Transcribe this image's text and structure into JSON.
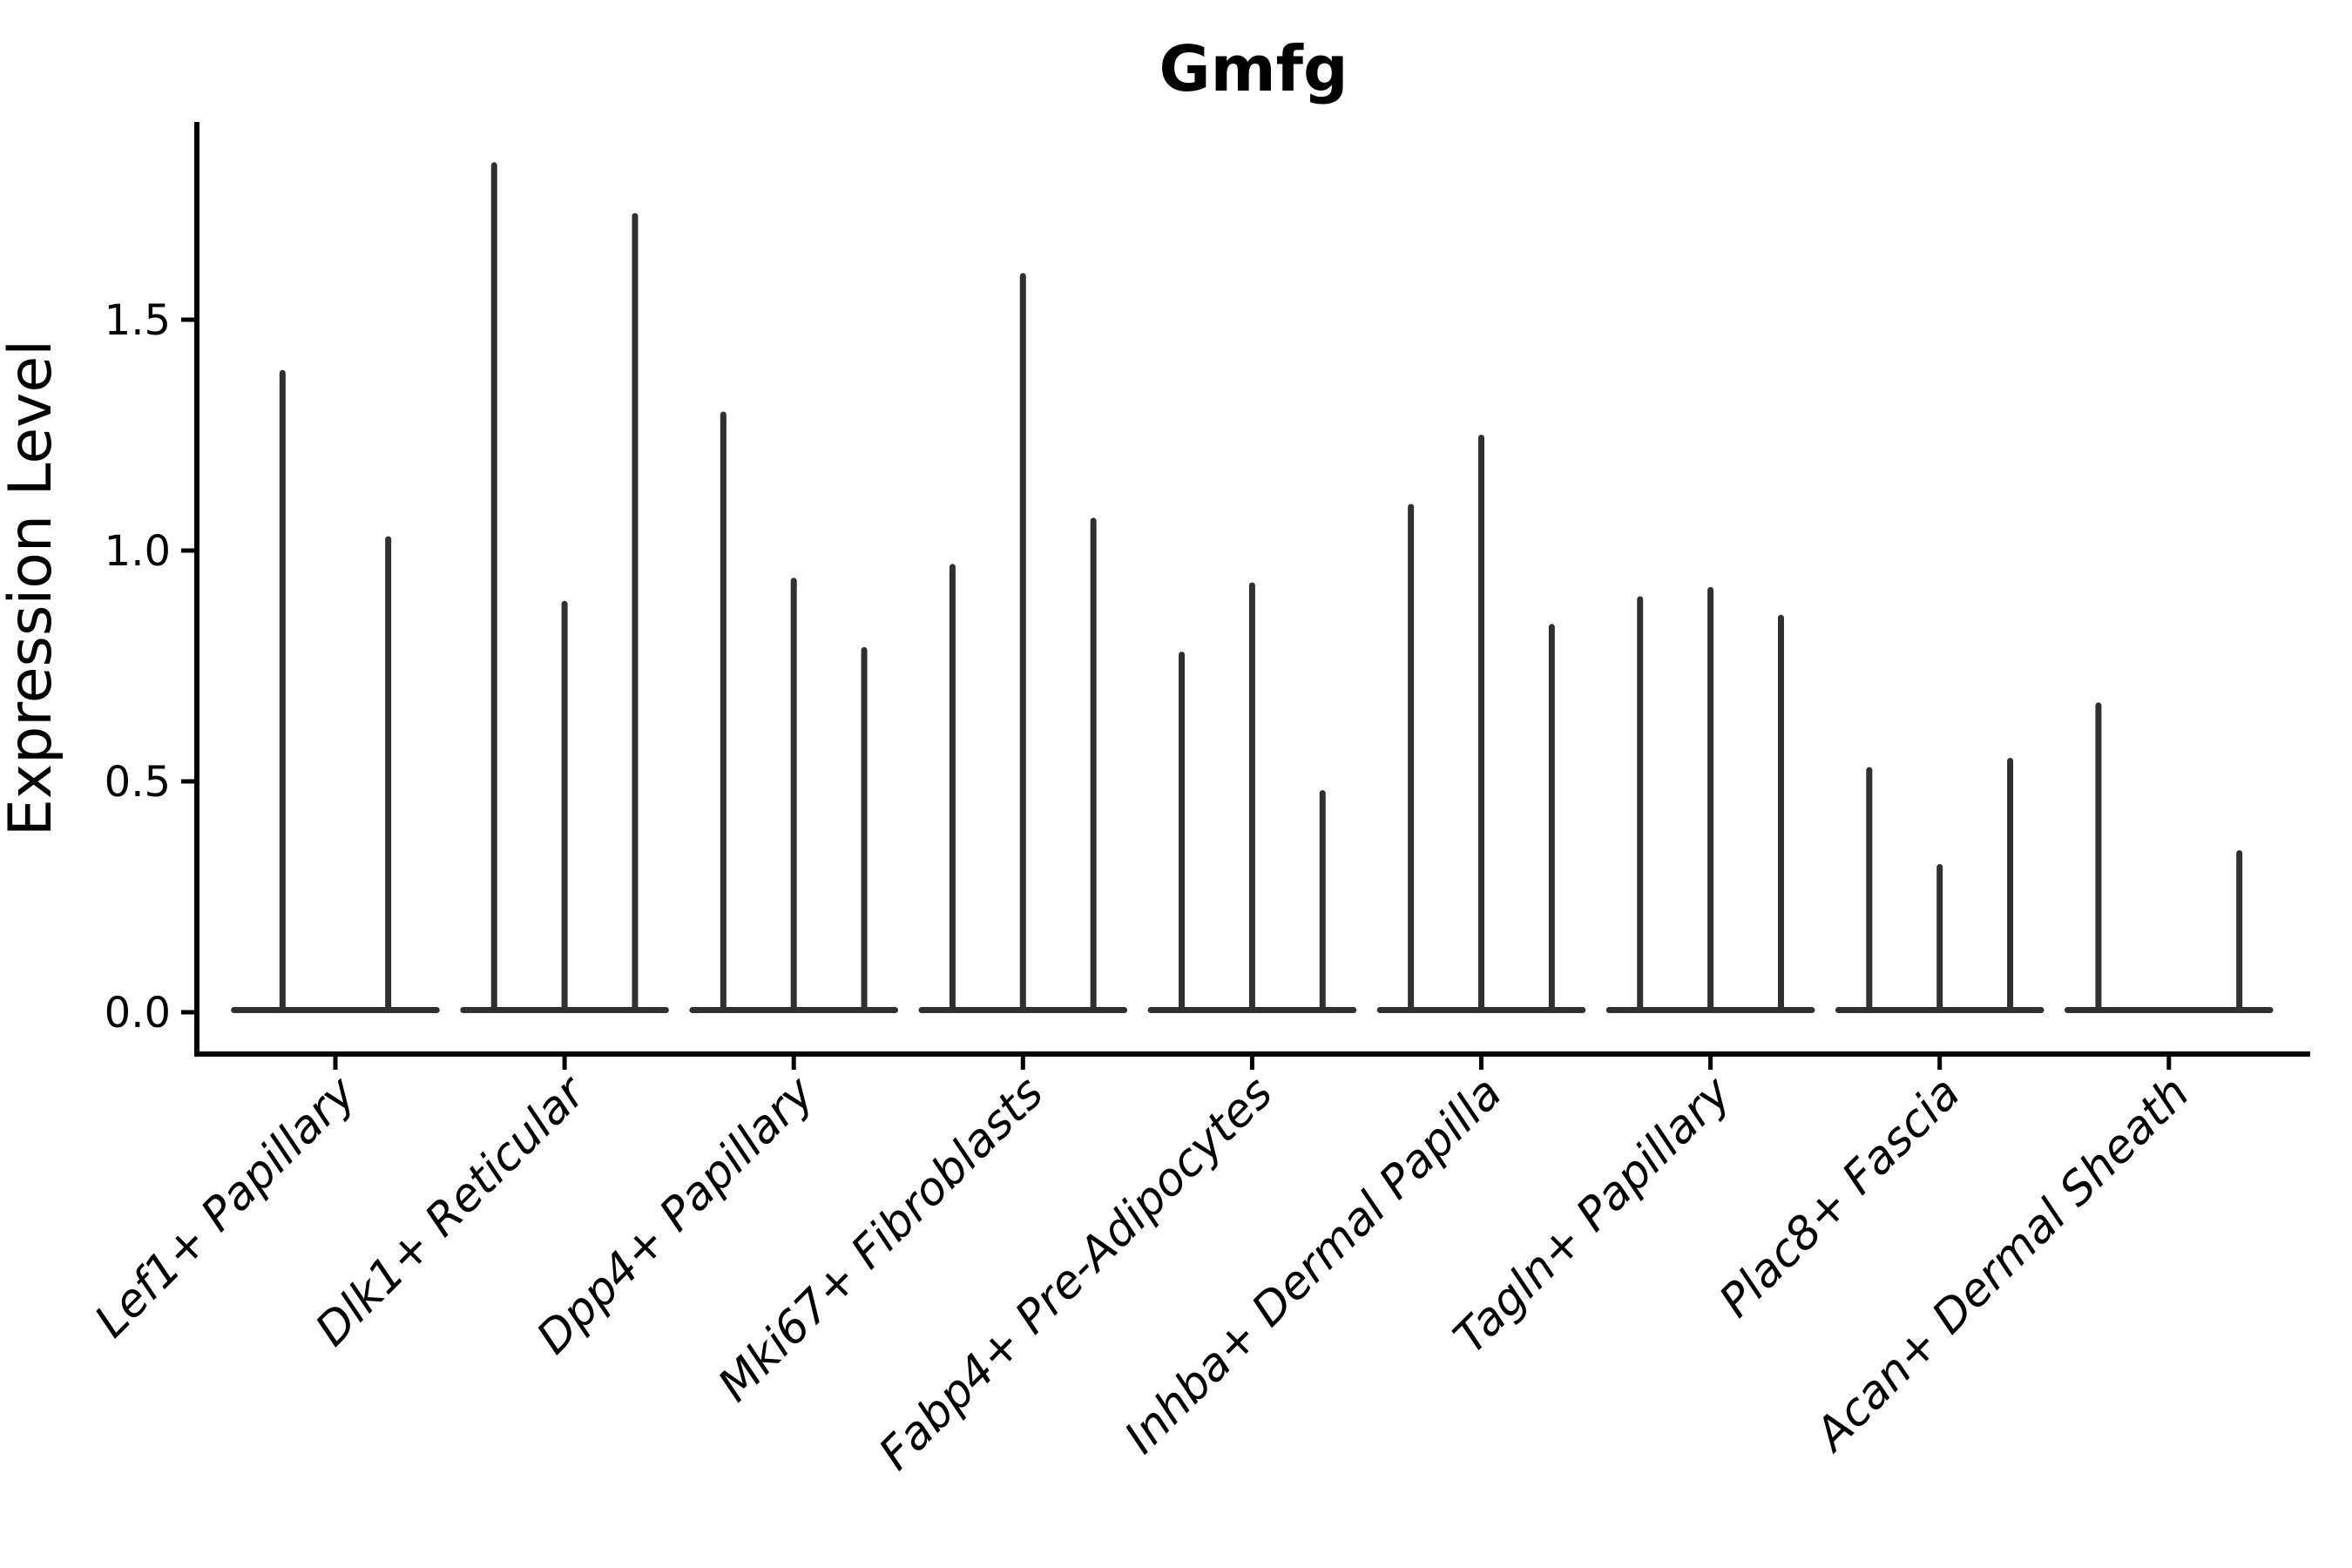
{
  "title": "Gmfg",
  "chart_data": {
    "type": "violin",
    "title": "Gmfg",
    "xlabel": "",
    "ylabel": "Expression Level",
    "ylim": [
      0,
      1.93
    ],
    "yticks": [
      0.0,
      0.5,
      1.0,
      1.5
    ],
    "ytick_labels": [
      "0.0",
      "0.5",
      "1.0",
      "1.5"
    ],
    "x_tick_rotation": 45,
    "grid": false,
    "legend": "none",
    "value_meaning": "max expression reached by each thin violin spike; violins are collapsed to near-zero width because most cells express 0",
    "categories": [
      "Lef1+ Papillary",
      "Dlk1+ Reticular",
      "Dpp4+ Papillary",
      "Mki67+ Fibroblasts",
      "Fabp4+ Pre-Adipocytes",
      "Inhba+ Dermal Papilla",
      "Tagln+ Papillary",
      "Plac8+ Fascia",
      "Acan+ Dermal Sheath"
    ],
    "groups": [
      {
        "label": "Lef1+ Papillary",
        "values": [
          1.39,
          1.03
        ]
      },
      {
        "label": "Dlk1+ Reticular",
        "values": [
          1.84,
          0.89,
          1.73
        ]
      },
      {
        "label": "Dpp4+ Papillary",
        "values": [
          1.3,
          0.94,
          0.79
        ]
      },
      {
        "label": "Mki67+ Fibroblasts",
        "values": [
          0.97,
          1.6,
          1.07
        ]
      },
      {
        "label": "Fabp4+ Pre-Adipocytes",
        "values": [
          0.78,
          0.93,
          0.48
        ]
      },
      {
        "label": "Inhba+ Dermal Papilla",
        "values": [
          1.1,
          1.25,
          0.84
        ]
      },
      {
        "label": "Tagln+ Papillary",
        "values": [
          0.9,
          0.92,
          0.86
        ]
      },
      {
        "label": "Plac8+ Fascia",
        "values": [
          0.53,
          0.32,
          0.55
        ]
      },
      {
        "label": "Acan+ Dermal Sheath",
        "values": [
          0.67,
          0.0,
          0.35
        ]
      }
    ],
    "colors": {
      "violin": "#303030",
      "axis": "#000000",
      "text": "#000000",
      "background": "#ffffff"
    }
  }
}
